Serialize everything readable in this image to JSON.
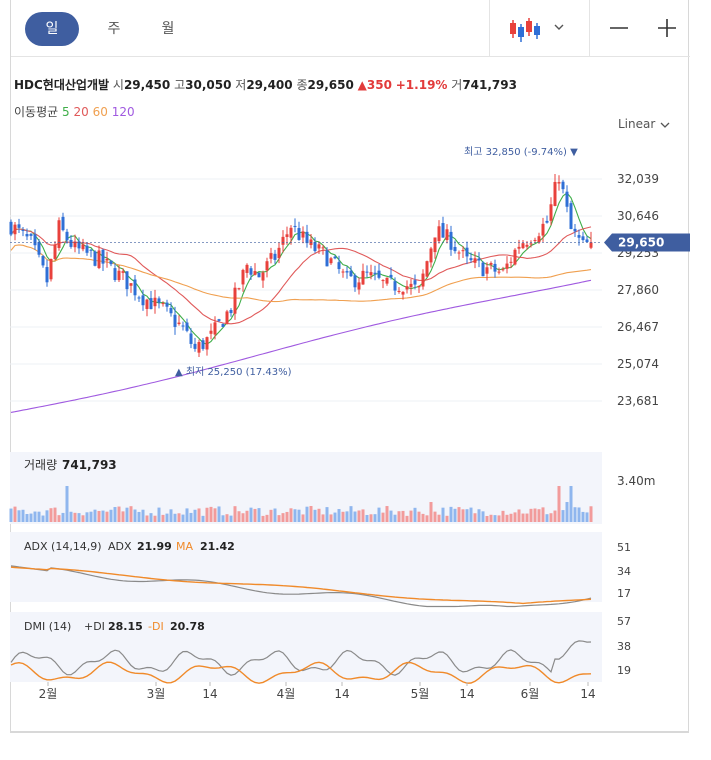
{
  "tabs": [
    {
      "label": "일",
      "active": true
    },
    {
      "label": "주",
      "active": false
    },
    {
      "label": "월",
      "active": false
    }
  ],
  "toolbar": {
    "chart_type_icon": "candlestick-icon",
    "dropdown_icon": "chevron-down-icon",
    "zoom_out_icon": "minus-icon",
    "zoom_in_icon": "plus-icon"
  },
  "stock": {
    "name": "HDC현대산업개발",
    "open_label": "시",
    "open": "29,450",
    "high_label": "고",
    "high": "30,050",
    "low_label": "저",
    "low": "29,400",
    "close_label": "종",
    "close": "29,650",
    "change": "▲350",
    "change_pct": "+1.19%",
    "volume_label": "거",
    "volume": "741,793"
  },
  "ma": {
    "label": "이동평균",
    "p5": "5",
    "p20": "20",
    "p60": "60",
    "p120": "120",
    "c5": "#3fae49",
    "c20": "#e05a5a",
    "c60": "#f0a050",
    "c120": "#a05ae0"
  },
  "scale": {
    "label": "Linear"
  },
  "colors": {
    "up": "#e8413c",
    "down": "#2f6fd6",
    "up_vol": "#f29b9b",
    "down_vol": "#8fb6ee",
    "badge": "#3f5ea0"
  },
  "chart_data": [
    {
      "type": "candlestick",
      "y_ticks": [
        "32,039",
        "30,646",
        "29,253",
        "27,860",
        "26,467",
        "25,074",
        "23,681"
      ],
      "y_values": [
        32039,
        30646,
        29253,
        27860,
        26467,
        25074,
        23681
      ],
      "current_price": "29,650",
      "current_value": 29650,
      "high_annotation": "최고 32,850 (-9.74%) ▼",
      "low_annotation": "▲ 최저 25,250 (17.43%)",
      "x_labels": [
        "2월",
        "3월",
        "14",
        "4월",
        "14",
        "5월",
        "14",
        "6월",
        "14"
      ]
    },
    {
      "type": "bar",
      "title": "거래량",
      "value_text": "741,793",
      "y_tick": "3.40m"
    },
    {
      "type": "line",
      "title": "ADX (14,14,9)",
      "series_labels": [
        "ADX",
        "MA"
      ],
      "series_values": [
        "21.99",
        "21.42"
      ],
      "y_ticks": [
        "51",
        "34",
        "17"
      ]
    },
    {
      "type": "line",
      "title": "DMI (14)",
      "series_labels": [
        "+DI",
        "-DI"
      ],
      "series_values": [
        "28.15",
        "20.78"
      ],
      "y_ticks": [
        "57",
        "38",
        "19"
      ]
    }
  ]
}
